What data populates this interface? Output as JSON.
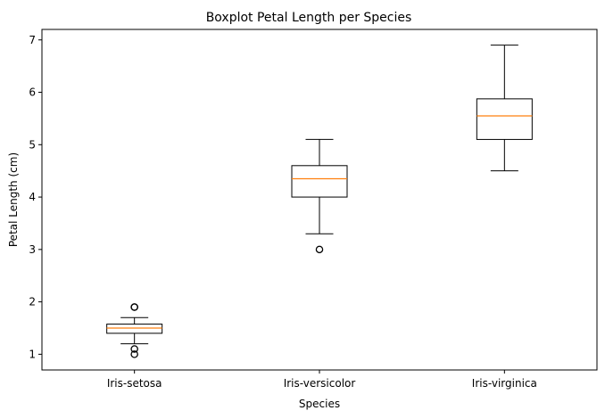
{
  "chart_data": {
    "type": "boxplot",
    "title": "Boxplot Petal Length per Species",
    "xlabel": "Species",
    "ylabel": "Petal Length (cm)",
    "ylim": [
      0.7,
      7.2
    ],
    "yticks": [
      1,
      2,
      3,
      4,
      5,
      6,
      7
    ],
    "categories": [
      "Iris-setosa",
      "Iris-versicolor",
      "Iris-virginica"
    ],
    "boxes": [
      {
        "category": "Iris-setosa",
        "whisker_low": 1.2,
        "q1": 1.4,
        "median": 1.5,
        "q3": 1.575,
        "whisker_high": 1.7,
        "outliers": [
          1.0,
          1.1,
          1.9,
          1.9
        ]
      },
      {
        "category": "Iris-versicolor",
        "whisker_low": 3.3,
        "q1": 4.0,
        "median": 4.35,
        "q3": 4.6,
        "whisker_high": 5.1,
        "outliers": [
          3.0
        ]
      },
      {
        "category": "Iris-virginica",
        "whisker_low": 4.5,
        "q1": 5.1,
        "median": 5.55,
        "q3": 5.875,
        "whisker_high": 6.9,
        "outliers": []
      }
    ],
    "grid": false,
    "colors": {
      "box": "#000000",
      "median": "#ff7f0e",
      "outlier": "#000000"
    }
  }
}
